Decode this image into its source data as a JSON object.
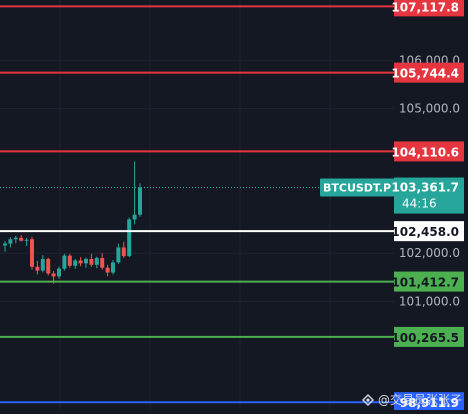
{
  "chart_data": {
    "type": "candlestick",
    "symbol": "BTCUSDT.P",
    "countdown": "44:16",
    "last_price": "103,361.7",
    "ylim": [
      98750,
      107250
    ],
    "y_ticks": [
      "106,000.0",
      "105,000.0",
      "102,000.0",
      "101,000.0"
    ],
    "y_tick_values": [
      106000,
      105000,
      102000,
      101000
    ],
    "price_lines": [
      {
        "label": "107,117.8",
        "value": 107117.8,
        "color": "#e5353f",
        "text_color": "#ffffff",
        "bg": "#e5353f"
      },
      {
        "label": "105,744.4",
        "value": 105744.4,
        "color": "#e5353f",
        "text_color": "#ffffff",
        "bg": "#e5353f"
      },
      {
        "label": "104,110.6",
        "value": 104110.6,
        "color": "#e5353f",
        "text_color": "#ffffff",
        "bg": "#e5353f"
      },
      {
        "label": "102,458.0",
        "value": 102458.0,
        "color": "#ffffff",
        "text_color": "#141823",
        "bg": "#ffffff"
      },
      {
        "label": "101,412.7",
        "value": 101412.7,
        "color": "#4caf50",
        "text_color": "#141823",
        "bg": "#4caf50"
      },
      {
        "label": "100,265.5",
        "value": 100265.5,
        "color": "#4caf50",
        "text_color": "#141823",
        "bg": "#4caf50"
      },
      {
        "label": "98,911.9",
        "value": 98911.9,
        "color": "#2962ff",
        "text_color": "#ffffff",
        "bg": "#2962ff"
      }
    ],
    "colors": {
      "up": "#26a69a",
      "down": "#ef5350",
      "last_price": "#26a69a",
      "grid": "#1e2230"
    },
    "candles": [
      {
        "o": 102160,
        "h": 102250,
        "l": 102030,
        "c": 102200
      },
      {
        "o": 102200,
        "h": 102330,
        "l": 102120,
        "c": 102290
      },
      {
        "o": 102290,
        "h": 102360,
        "l": 102210,
        "c": 102320
      },
      {
        "o": 102320,
        "h": 102380,
        "l": 102240,
        "c": 102260
      },
      {
        "o": 102260,
        "h": 102320,
        "l": 102150,
        "c": 102280
      },
      {
        "o": 102290,
        "h": 102340,
        "l": 101660,
        "c": 101720
      },
      {
        "o": 101720,
        "h": 101840,
        "l": 101560,
        "c": 101640
      },
      {
        "o": 101640,
        "h": 101960,
        "l": 101600,
        "c": 101880
      },
      {
        "o": 101880,
        "h": 101910,
        "l": 101540,
        "c": 101580
      },
      {
        "o": 101580,
        "h": 101630,
        "l": 101370,
        "c": 101520
      },
      {
        "o": 101520,
        "h": 101720,
        "l": 101470,
        "c": 101680
      },
      {
        "o": 101680,
        "h": 101990,
        "l": 101640,
        "c": 101950
      },
      {
        "o": 101950,
        "h": 101990,
        "l": 101700,
        "c": 101740
      },
      {
        "o": 101740,
        "h": 101880,
        "l": 101680,
        "c": 101850
      },
      {
        "o": 101850,
        "h": 101920,
        "l": 101730,
        "c": 101790
      },
      {
        "o": 101790,
        "h": 101910,
        "l": 101700,
        "c": 101880
      },
      {
        "o": 101880,
        "h": 101990,
        "l": 101720,
        "c": 101760
      },
      {
        "o": 101760,
        "h": 101930,
        "l": 101690,
        "c": 101900
      },
      {
        "o": 101900,
        "h": 102000,
        "l": 101660,
        "c": 101700
      },
      {
        "o": 101700,
        "h": 101760,
        "l": 101520,
        "c": 101600
      },
      {
        "o": 101600,
        "h": 101860,
        "l": 101560,
        "c": 101810
      },
      {
        "o": 101810,
        "h": 102200,
        "l": 101780,
        "c": 102120
      },
      {
        "o": 102120,
        "h": 102240,
        "l": 101900,
        "c": 101940
      },
      {
        "o": 101940,
        "h": 102740,
        "l": 101920,
        "c": 102700
      },
      {
        "o": 102700,
        "h": 103900,
        "l": 102600,
        "c": 102800
      },
      {
        "o": 102800,
        "h": 103450,
        "l": 102760,
        "c": 103361.7
      }
    ]
  },
  "watermark": {
    "text": "@交易员张张子",
    "logo_icon": "diamond-logo-icon"
  }
}
